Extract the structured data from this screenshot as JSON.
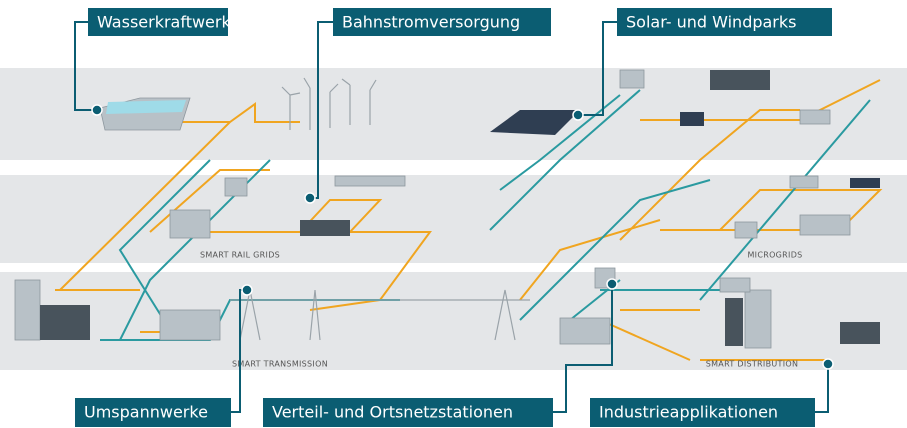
{
  "callouts": {
    "top": [
      "Wasserkraftwerke",
      "Bahnstromversorgung",
      "Solar- und Windparks"
    ],
    "bottom": [
      "Umspannwerke",
      "Verteil- und Ortsnetzstationen",
      "Industrieapplikationen"
    ]
  },
  "sections": [
    "SMART RAIL GRIDS",
    "MICROGRIDS",
    "SMART TRANSMISSION",
    "SMART DISTRIBUTION"
  ]
}
